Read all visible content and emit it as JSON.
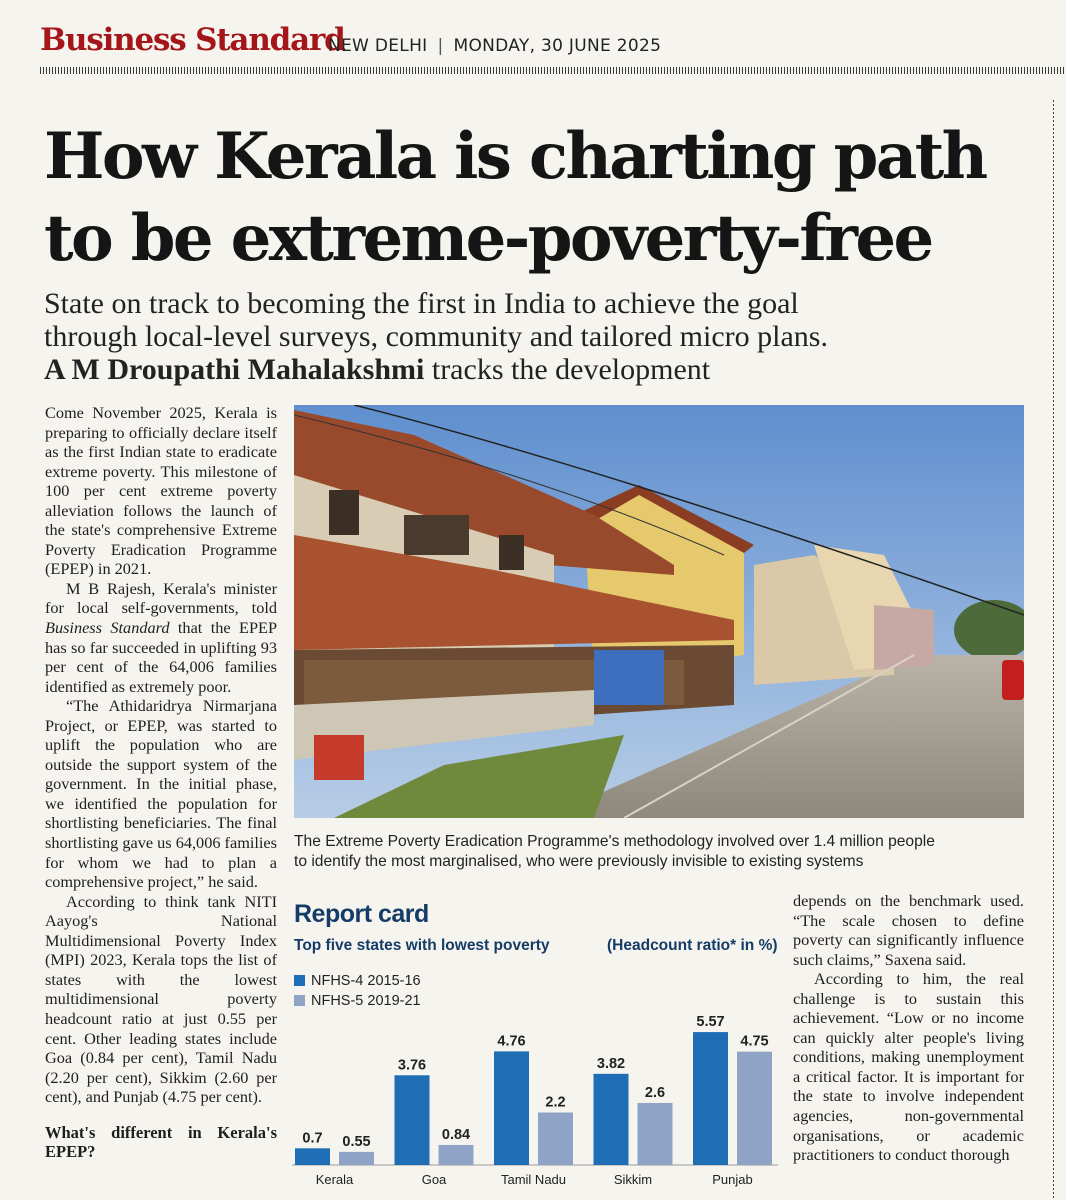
{
  "masthead": {
    "logo": "Business Standard",
    "city": "NEW DELHI",
    "separator": "|",
    "date": "MONDAY, 30 JUNE 2025"
  },
  "headline": {
    "line1": "How Kerala is charting path",
    "line2": "to be extreme-poverty-free"
  },
  "deck": {
    "line1": "State on track to becoming the first in India to achieve the goal",
    "line2": "through local-level surveys, community and tailored micro plans.",
    "byline": "A M Droupathi Mahalakshmi",
    "byline_suffix": " tracks the development"
  },
  "body_col1": {
    "p1": "Come November 2025, Kerala is preparing to officially declare itself as the first Indian state to eradicate extreme poverty. This milestone of 100 per cent extreme poverty alleviation follows the launch of the state's comprehensive Extreme Poverty Eradication Programme (EPEP) in 2021.",
    "p2_a": "M B Rajesh, Kerala's minister for local self-governments, told ",
    "p2_em": "Business Standard",
    "p2_b": " that the EPEP has so far succeeded in uplifting 93 per cent of the 64,006 families identified as extremely poor.",
    "p3": "“The Athidaridrya Nirmarjana Project, or EPEP, was started to uplift the population who are outside the support system of the government. In the initial phase, we identified the population for shortlisting beneficiaries. The final shortlisting gave us 64,006 families for whom we had to plan a comprehensive project,” he said.",
    "p4": "According to think tank NITI Aayog's National Multidimensional Poverty Index (MPI) 2023, Kerala tops the list of states with the lowest multidimensional poverty headcount ratio at just 0.55 per cent. Other leading states include Goa (0.84 per cent), Tamil Nadu (2.20 per cent), Sikkim (2.60 per cent), and Punjab (4.75 per cent).",
    "subhead": "What's different in Kerala's EPEP?"
  },
  "body_col3": {
    "p1": "depends on the benchmark used. “The scale chosen to define poverty can significantly influence such claims,” Saxena said.",
    "p2": "According to him, the real challenge is to sustain this achievement. “Low or no income can quickly alter people's living conditions, making unemployment a critical factor. It is important for the state to involve independent agencies, non-governmental organisations, or academic practitioners to conduct thorough"
  },
  "photo": {
    "caption_line1": "The Extreme Poverty Eradication Programme's methodology involved over 1.4 million people",
    "caption_line2": "to identify the most marginalised, who were previously invisible to existing systems"
  },
  "chart_header": {
    "title": "Report card",
    "subtitle": "Top five states with lowest poverty",
    "unit": "(Headcount ratio* in %)"
  },
  "chart_data": {
    "type": "bar",
    "categories": [
      "Kerala",
      "Goa",
      "Tamil Nadu",
      "Sikkim",
      "Punjab"
    ],
    "series": [
      {
        "name": "NFHS-4 2015-16",
        "values": [
          0.7,
          3.76,
          4.76,
          3.82,
          5.57
        ],
        "labels": [
          "0.7",
          "3.76",
          "4.76",
          "3.82",
          "5.57"
        ],
        "color": "#1f6db5"
      },
      {
        "name": "NFHS-5 2019-21",
        "values": [
          0.55,
          0.84,
          2.2,
          2.6,
          4.75
        ],
        "labels": [
          "0.55",
          "0.84",
          "2.2",
          "2.6",
          "4.75"
        ],
        "color": "#8ea3c6"
      }
    ],
    "ylim": [
      0,
      6
    ],
    "grid": false,
    "legend_position": "top-left"
  }
}
